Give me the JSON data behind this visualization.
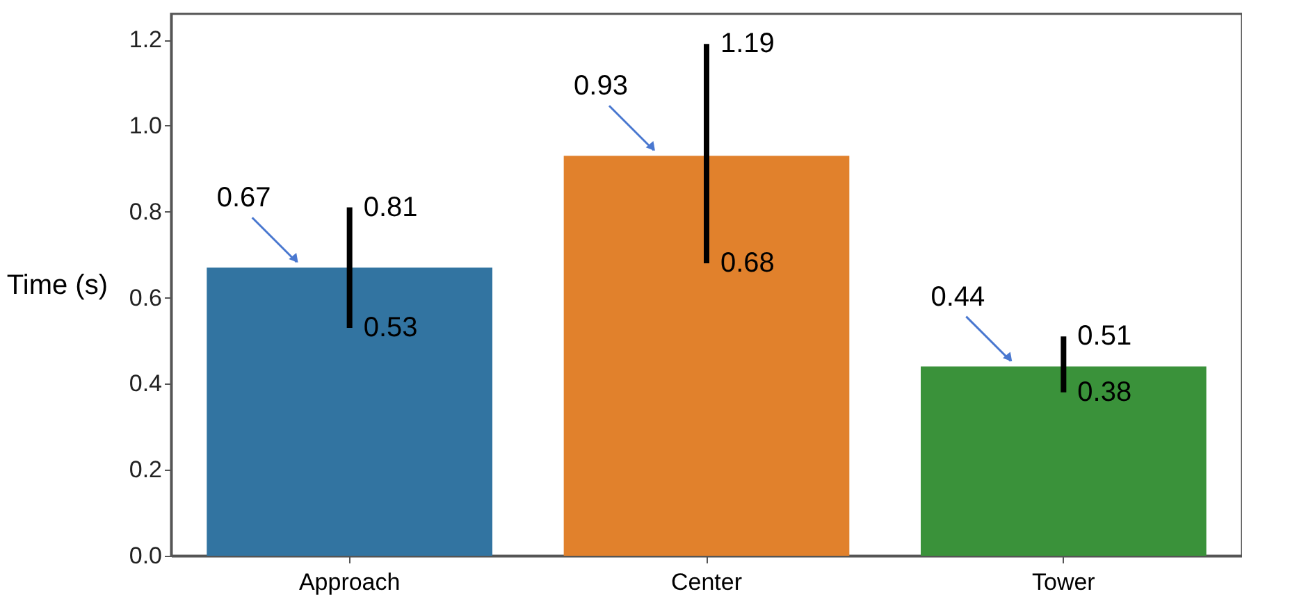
{
  "chart_data": {
    "type": "bar",
    "ylabel": "Time (s)",
    "categories": [
      "Approach",
      "Center",
      "Tower"
    ],
    "values": [
      0.67,
      0.93,
      0.44
    ],
    "colors": [
      "#3274a1",
      "#e1812c",
      "#3a923a"
    ],
    "errors": [
      [
        0.53,
        0.81
      ],
      [
        0.68,
        1.19
      ],
      [
        0.38,
        0.51
      ]
    ],
    "data_labels": true,
    "annotations": [
      {
        "text": "0.81",
        "x": "Approach",
        "y": 0.81
      },
      {
        "text": "0.53",
        "x": "Approach",
        "y": 0.53
      },
      {
        "text": "1.19",
        "x": "Center",
        "y": 1.19
      },
      {
        "text": "0.68",
        "x": "Center",
        "y": 0.68
      },
      {
        "text": "0.51",
        "x": "Tower",
        "y": 0.51
      },
      {
        "text": "0.38",
        "x": "Tower",
        "y": 0.38
      }
    ],
    "ylim": [
      0,
      1.26
    ],
    "yticks": [
      {
        "value": 0,
        "label": "0.0"
      },
      {
        "value": 0.2,
        "label": "0.2"
      },
      {
        "value": 0.4,
        "label": "0.4"
      },
      {
        "value": 0.6,
        "label": "0.6"
      },
      {
        "value": 0.8,
        "label": "0.8"
      },
      {
        "value": 1.0,
        "label": "1.0"
      },
      {
        "value": 1.2,
        "label": "1.2"
      }
    ],
    "grid": false
  }
}
